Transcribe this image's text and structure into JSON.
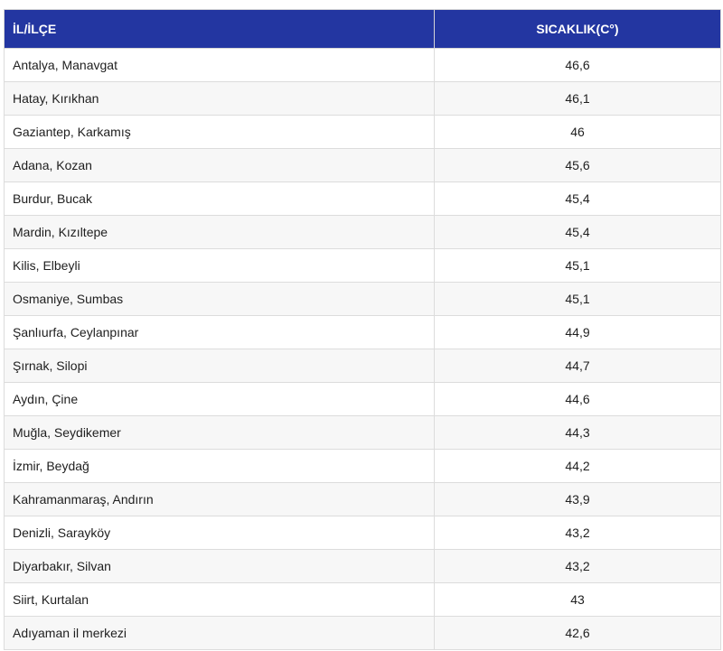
{
  "colors": {
    "header_bg": "#2336a1",
    "header_text": "#ffffff",
    "row_alt": "#f7f7f7",
    "border": "#dcdcdc"
  },
  "table": {
    "headers": {
      "location": "İL/İLÇE",
      "temperature": "SICAKLIK(C°)"
    },
    "rows": [
      {
        "location": "Antalya, Manavgat",
        "temperature": "46,6"
      },
      {
        "location": "Hatay, Kırıkhan",
        "temperature": "46,1"
      },
      {
        "location": "Gaziantep, Karkamış",
        "temperature": "46"
      },
      {
        "location": "Adana, Kozan",
        "temperature": "45,6"
      },
      {
        "location": "Burdur, Bucak",
        "temperature": "45,4"
      },
      {
        "location": "Mardin, Kızıltepe",
        "temperature": "45,4"
      },
      {
        "location": "Kilis, Elbeyli",
        "temperature": "45,1"
      },
      {
        "location": "Osmaniye, Sumbas",
        "temperature": "45,1"
      },
      {
        "location": "Şanlıurfa, Ceylanpınar",
        "temperature": "44,9"
      },
      {
        "location": "Şırnak, Silopi",
        "temperature": "44,7"
      },
      {
        "location": "Aydın, Çine",
        "temperature": "44,6"
      },
      {
        "location": "Muğla, Seydikemer",
        "temperature": "44,3"
      },
      {
        "location": "İzmir, Beydağ",
        "temperature": "44,2"
      },
      {
        "location": "Kahramanmaraş, Andırın",
        "temperature": "43,9"
      },
      {
        "location": "Denizli, Sarayköy",
        "temperature": "43,2"
      },
      {
        "location": "Diyarbakır, Silvan",
        "temperature": "43,2"
      },
      {
        "location": "Siirt, Kurtalan",
        "temperature": "43"
      },
      {
        "location": "Adıyaman il merkezi",
        "temperature": "42,6"
      }
    ]
  }
}
